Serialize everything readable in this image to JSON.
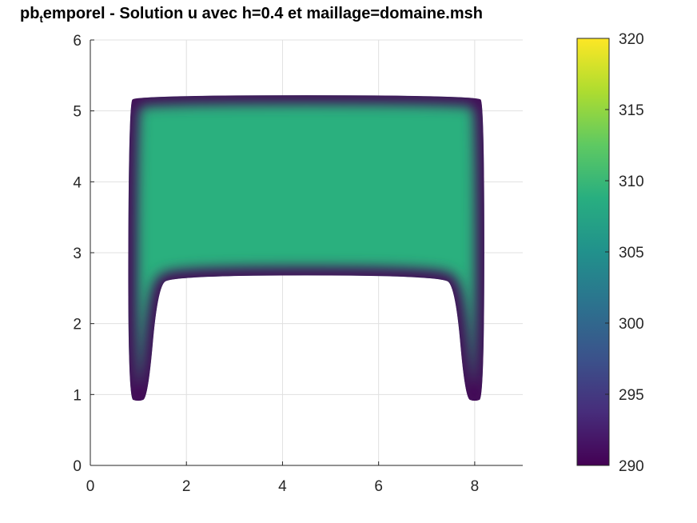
{
  "chart_data": {
    "type": "heatmap",
    "title": "pb",
    "title_subscript": "t",
    "title_rest": "emporel - Solution u avec h=0.4 et maillage=domaine.msh",
    "xlim": [
      0,
      9
    ],
    "ylim": [
      0,
      6
    ],
    "x_ticks": [
      0,
      2,
      4,
      6,
      8
    ],
    "y_ticks": [
      0,
      1,
      2,
      3,
      4,
      5,
      6
    ],
    "grid": true,
    "colormap": "viridis",
    "colorbar": {
      "limits": [
        290,
        320
      ],
      "ticks": [
        290,
        295,
        300,
        305,
        310,
        315,
        320
      ]
    },
    "field": {
      "boundary_value": 290,
      "interior_value": 309,
      "domain_outline": [
        [
          0.78,
          0.95
        ],
        [
          0.8,
          5.1
        ],
        [
          0.95,
          5.22
        ],
        [
          8.05,
          5.22
        ],
        [
          8.2,
          5.1
        ],
        [
          8.2,
          0.95
        ],
        [
          8.0,
          0.9
        ],
        [
          7.8,
          0.95
        ],
        [
          7.6,
          2.5
        ],
        [
          7.3,
          2.68
        ],
        [
          1.7,
          2.68
        ],
        [
          1.4,
          2.5
        ],
        [
          1.2,
          0.95
        ],
        [
          1.0,
          0.9
        ]
      ]
    },
    "colors": {
      "viridis_stops": [
        "#440154",
        "#472d7b",
        "#3b528b",
        "#2c728e",
        "#21918c",
        "#28ae80",
        "#5ec962",
        "#addc30",
        "#fde725"
      ],
      "grid": "#e0e0e0",
      "axis": "#262626"
    }
  }
}
